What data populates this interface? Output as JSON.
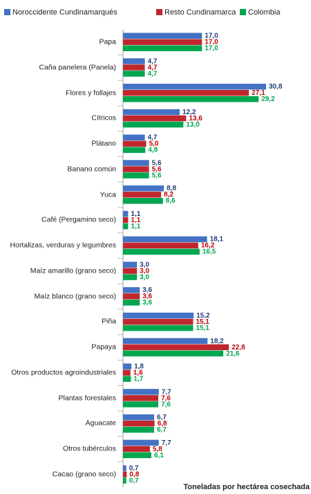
{
  "chart_data": {
    "type": "hbar",
    "x_label": "Toneladas por hectárea cosechada",
    "categories": [
      "Papa",
      "Caña panelera (Panela)",
      "Flores y follajes",
      "Cítricos",
      "Plátano",
      "Banano común",
      "Yuca",
      "Café (Pergamino seco)",
      "Hortalizas, verduras y legumbres",
      "Maíz amarillo (grano seco)",
      "Maíz blanco (grano seco)",
      "Piña",
      "Papaya",
      "Otros productos agroindustriales",
      "Plantas forestales",
      "Aguacate",
      "Otros tubérculos",
      "Cacao (grano seco)"
    ],
    "xlim": [
      0,
      32
    ],
    "series": [
      {
        "name": "Noroccidente Cundinamarqués",
        "color": "#4472c4",
        "label_color": "#1f3d7a",
        "values": [
          17.0,
          4.7,
          30.8,
          12.2,
          4.7,
          5.6,
          8.8,
          1.1,
          18.1,
          3.0,
          3.6,
          15.2,
          18.2,
          1.8,
          7.7,
          6.7,
          7.7,
          0.7
        ],
        "value_labels": [
          "17,0",
          "4,7",
          "30,8",
          "12,2",
          "4,7",
          "5,6",
          "8,8",
          "1,1",
          "18,1",
          "3,0",
          "3,6",
          "15,2",
          "18,2",
          "1,8",
          "7,7",
          "6,7",
          "7,7",
          "0,7"
        ]
      },
      {
        "name": "Resto Cundinamarca",
        "color": "#c0272d",
        "label_color": "#c00000",
        "values": [
          17.0,
          4.7,
          27.1,
          13.6,
          5.0,
          5.6,
          8.2,
          1.1,
          16.2,
          3.0,
          3.6,
          15.1,
          22.8,
          1.6,
          7.6,
          6.8,
          5.8,
          0.8
        ],
        "value_labels": [
          "17,0",
          "4,7",
          "27,1",
          "13,6",
          "5,0",
          "5,6",
          "8,2",
          "1,1",
          "16,2",
          "3,0",
          "3,6",
          "15,1",
          "22,8",
          "1,6",
          "7,6",
          "6,8",
          "5,8",
          "0,8"
        ]
      },
      {
        "name": "Colombia",
        "color": "#00a650",
        "label_color": "#00a650",
        "values": [
          17.0,
          4.7,
          29.2,
          13.0,
          4.8,
          5.6,
          8.6,
          1.1,
          16.5,
          3.0,
          3.6,
          15.1,
          21.6,
          1.7,
          7.6,
          6.7,
          6.1,
          0.7
        ],
        "value_labels": [
          "17,0",
          "4,7",
          "29,2",
          "13,0",
          "4,8",
          "5,6",
          "8,6",
          "1,1",
          "16,5",
          "3,0",
          "3,6",
          "15,1",
          "21,6",
          "1,7",
          "7,6",
          "6,7",
          "6,1",
          "0,7"
        ]
      }
    ]
  }
}
